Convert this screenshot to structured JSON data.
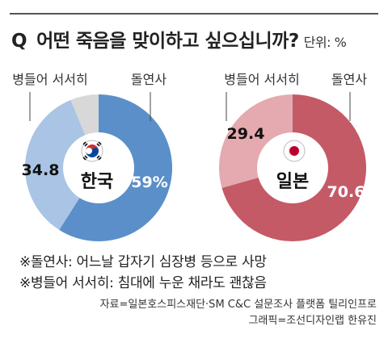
{
  "header": {
    "q_mark": "Q",
    "question": "어떤 죽음을 맞이하고 싶으십니까?",
    "unit": "단위: %"
  },
  "chart_data": [
    {
      "type": "pie",
      "country": "한국",
      "slices": [
        {
          "label": "돌연사",
          "value": 59,
          "display": "59%",
          "color": "#5b8fc9"
        },
        {
          "label": "병들어 서서히",
          "value": 34.8,
          "display": "34.8",
          "color": "#a9c4e4"
        },
        {
          "label": "",
          "value": 6.2,
          "display": "",
          "color": "#d8d8d8"
        }
      ]
    },
    {
      "type": "pie",
      "country": "일본",
      "slices": [
        {
          "label": "돌연사",
          "value": 70.6,
          "display": "70.6",
          "color": "#c45a66"
        },
        {
          "label": "병들어 서서히",
          "value": 29.4,
          "display": "29.4",
          "color": "#e4aab0"
        }
      ]
    }
  ],
  "notes": [
    "※돌연사: 어느날 갑자기 심장병 등으로 사망",
    "※병들어 서서히: 침대에 누운 채라도 괜찮음"
  ],
  "source": [
    "자료=일본호스피스재단·SM C&C 설문조사 플랫폼 틸리인프로",
    "그래픽=조선디자인랩 한유진"
  ]
}
